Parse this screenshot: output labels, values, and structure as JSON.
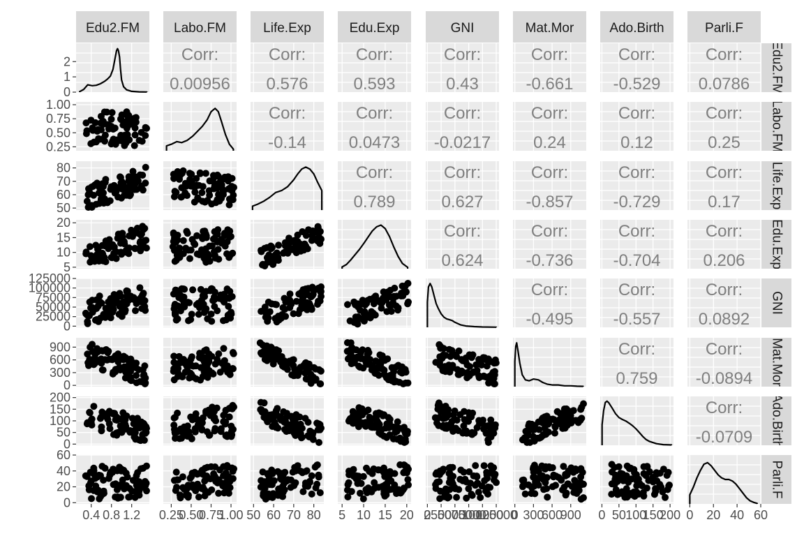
{
  "chart_data": {
    "type": "scatter-matrix",
    "variables": [
      "Edu2.FM",
      "Labo.FM",
      "Life.Exp",
      "Edu.Exp",
      "GNI",
      "Mat.Mor",
      "Ado.Birth",
      "Parli.F"
    ],
    "corr_label": "Corr:",
    "correlations": [
      {
        "row": "Edu2.FM",
        "col": "Labo.FM",
        "value": "0.00956"
      },
      {
        "row": "Edu2.FM",
        "col": "Life.Exp",
        "value": "0.576"
      },
      {
        "row": "Edu2.FM",
        "col": "Edu.Exp",
        "value": "0.593"
      },
      {
        "row": "Edu2.FM",
        "col": "GNI",
        "value": "0.43"
      },
      {
        "row": "Edu2.FM",
        "col": "Mat.Mor",
        "value": "-0.661"
      },
      {
        "row": "Edu2.FM",
        "col": "Ado.Birth",
        "value": "-0.529"
      },
      {
        "row": "Edu2.FM",
        "col": "Parli.F",
        "value": "0.0786"
      },
      {
        "row": "Labo.FM",
        "col": "Life.Exp",
        "value": "-0.14"
      },
      {
        "row": "Labo.FM",
        "col": "Edu.Exp",
        "value": "0.0473"
      },
      {
        "row": "Labo.FM",
        "col": "GNI",
        "value": "-0.0217"
      },
      {
        "row": "Labo.FM",
        "col": "Mat.Mor",
        "value": "0.24"
      },
      {
        "row": "Labo.FM",
        "col": "Ado.Birth",
        "value": "0.12"
      },
      {
        "row": "Labo.FM",
        "col": "Parli.F",
        "value": "0.25"
      },
      {
        "row": "Life.Exp",
        "col": "Edu.Exp",
        "value": "0.789"
      },
      {
        "row": "Life.Exp",
        "col": "GNI",
        "value": "0.627"
      },
      {
        "row": "Life.Exp",
        "col": "Mat.Mor",
        "value": "-0.857"
      },
      {
        "row": "Life.Exp",
        "col": "Ado.Birth",
        "value": "-0.729"
      },
      {
        "row": "Life.Exp",
        "col": "Parli.F",
        "value": "0.17"
      },
      {
        "row": "Edu.Exp",
        "col": "GNI",
        "value": "0.624"
      },
      {
        "row": "Edu.Exp",
        "col": "Mat.Mor",
        "value": "-0.736"
      },
      {
        "row": "Edu.Exp",
        "col": "Ado.Birth",
        "value": "-0.704"
      },
      {
        "row": "Edu.Exp",
        "col": "Parli.F",
        "value": "0.206"
      },
      {
        "row": "GNI",
        "col": "Mat.Mor",
        "value": "-0.495"
      },
      {
        "row": "GNI",
        "col": "Ado.Birth",
        "value": "-0.557"
      },
      {
        "row": "GNI",
        "col": "Parli.F",
        "value": "0.0892"
      },
      {
        "row": "Mat.Mor",
        "col": "Ado.Birth",
        "value": "0.759"
      },
      {
        "row": "Mat.Mor",
        "col": "Parli.F",
        "value": "-0.0894"
      },
      {
        "row": "Ado.Birth",
        "col": "Parli.F",
        "value": "-0.0709"
      }
    ],
    "diagonal": [
      {
        "var": "Edu2.FM",
        "type": "density",
        "xlim": [
          0.1,
          1.55
        ],
        "ylim": [
          0,
          3.2
        ],
        "y_ticks": [
          "0",
          "1",
          "2"
        ],
        "y_tick_values": [
          0,
          1,
          2
        ],
        "x_ticks": [
          "0.4",
          "0.8",
          "1.2"
        ],
        "x_tick_values": [
          0.4,
          0.8,
          1.2
        ],
        "curve_x": [
          0.17,
          0.25,
          0.33,
          0.42,
          0.5,
          0.58,
          0.66,
          0.72,
          0.78,
          0.83,
          0.87,
          0.9,
          0.92,
          0.94,
          0.96,
          0.98,
          1.0,
          1.04,
          1.1,
          1.2,
          1.35,
          1.5
        ],
        "curve_y": [
          0.03,
          0.18,
          0.48,
          0.42,
          0.45,
          0.55,
          0.7,
          0.85,
          1.05,
          1.5,
          2.2,
          2.7,
          2.85,
          2.7,
          2.3,
          1.5,
          0.8,
          0.35,
          0.15,
          0.05,
          0.02,
          0.01
        ]
      },
      {
        "var": "Labo.FM",
        "type": "density",
        "xlim": [
          0.15,
          1.07
        ],
        "ylim": [
          0,
          1.5
        ],
        "x_ticks": [
          "0.25",
          "0.50",
          "0.75",
          "1.00"
        ],
        "x_tick_values": [
          0.25,
          0.5,
          0.75,
          1.0
        ],
        "curve_x": [
          0.19,
          0.25,
          0.32,
          0.38,
          0.45,
          0.52,
          0.58,
          0.64,
          0.7,
          0.75,
          0.8,
          0.84,
          0.88,
          0.93,
          0.98,
          1.03
        ],
        "curve_y": [
          0.15,
          0.2,
          0.28,
          0.25,
          0.32,
          0.45,
          0.6,
          0.75,
          0.95,
          1.2,
          1.3,
          1.2,
          0.9,
          0.5,
          0.2,
          0.05
        ]
      },
      {
        "var": "Life.Exp",
        "type": "density",
        "xlim": [
          48.5,
          85
        ],
        "ylim": [
          0,
          0.05
        ],
        "x_ticks": [
          "50",
          "60",
          "70",
          "80"
        ],
        "x_tick_values": [
          50,
          60,
          70,
          80
        ],
        "curve_x": [
          49.5,
          52,
          55,
          58,
          61,
          64,
          67,
          70,
          72,
          74,
          76,
          78,
          80,
          82,
          84
        ],
        "curve_y": [
          0.004,
          0.006,
          0.009,
          0.013,
          0.018,
          0.02,
          0.024,
          0.031,
          0.037,
          0.042,
          0.044,
          0.042,
          0.037,
          0.028,
          0.02
        ]
      },
      {
        "var": "Edu.Exp",
        "type": "density",
        "xlim": [
          4,
          21
        ],
        "ylim": [
          0,
          0.14
        ],
        "x_ticks": [
          "5",
          "10",
          "15",
          "20"
        ],
        "x_tick_values": [
          5,
          10,
          15,
          20
        ],
        "curve_x": [
          5,
          6,
          7,
          8,
          9,
          10,
          11,
          12,
          13,
          14,
          15,
          16,
          17,
          18,
          19,
          20.2
        ],
        "curve_y": [
          0.005,
          0.012,
          0.025,
          0.04,
          0.055,
          0.072,
          0.09,
          0.108,
          0.12,
          0.125,
          0.115,
          0.092,
          0.062,
          0.035,
          0.015,
          0.004
        ]
      },
      {
        "var": "GNI",
        "type": "density",
        "xlim": [
          -3000,
          130000
        ],
        "ylim": [
          0,
          2.9e-05
        ],
        "x_ticks": [
          "0",
          "25000",
          "50000",
          "75000",
          "100000",
          "125000"
        ],
        "x_tick_values": [
          0,
          25000,
          50000,
          75000,
          100000,
          125000
        ],
        "curve_x": [
          0,
          2000,
          5000,
          8000,
          12000,
          16000,
          20000,
          25000,
          30000,
          35000,
          40000,
          45000,
          50000,
          60000,
          70000,
          85000,
          100000,
          125000
        ],
        "curve_y": [
          1.5e-05,
          2.4e-05,
          2.6e-05,
          2.4e-05,
          1.9e-05,
          1.4e-05,
          1.1e-05,
          8e-06,
          6e-06,
          5e-06,
          4.5e-06,
          4e-06,
          3e-06,
          1.5e-06,
          8e-07,
          4e-07,
          2e-07,
          1e-07
        ]
      },
      {
        "var": "Mat.Mor",
        "type": "density",
        "xlim": [
          -30,
          1150
        ],
        "ylim": [
          0,
          0.0058
        ],
        "x_ticks": [
          "0",
          "300",
          "600",
          "900"
        ],
        "x_tick_values": [
          0,
          300,
          600,
          900
        ],
        "curve_x": [
          0,
          15,
          30,
          50,
          80,
          120,
          170,
          230,
          300,
          380,
          450,
          520,
          600,
          700,
          800,
          900,
          1000,
          1100
        ],
        "curve_y": [
          0.003,
          0.0048,
          0.0052,
          0.0043,
          0.0028,
          0.0014,
          0.0008,
          0.0007,
          0.0009,
          0.0008,
          0.0005,
          0.0003,
          0.0002,
          0.0002,
          0.0001,
          0.0001,
          5e-05,
          3e-05
        ]
      },
      {
        "var": "Ado.Birth",
        "type": "density",
        "xlim": [
          -5,
          210
        ],
        "ylim": [
          0,
          0.0155
        ],
        "x_ticks": [
          "0",
          "50",
          "100",
          "150",
          "200"
        ],
        "x_tick_values": [
          0,
          50,
          100,
          150,
          200
        ],
        "curve_x": [
          0.6,
          5,
          10,
          15,
          20,
          30,
          40,
          50,
          60,
          70,
          80,
          90,
          100,
          110,
          120,
          130,
          140,
          160,
          180,
          204
        ],
        "curve_y": [
          0.0065,
          0.011,
          0.0136,
          0.014,
          0.0135,
          0.0118,
          0.01,
          0.0088,
          0.0082,
          0.0077,
          0.007,
          0.0062,
          0.0052,
          0.004,
          0.0028,
          0.0018,
          0.0012,
          0.0005,
          0.0002,
          0.0001
        ]
      },
      {
        "var": "Parli.F",
        "type": "density",
        "xlim": [
          -2,
          60
        ],
        "ylim": [
          0,
          0.032
        ],
        "x_ticks": [
          "0",
          "20",
          "40",
          "60"
        ],
        "x_tick_values": [
          0,
          20,
          40,
          60
        ],
        "curve_x": [
          0,
          3,
          6,
          9,
          12,
          15,
          18,
          21,
          24,
          27,
          30,
          33,
          36,
          39,
          42,
          45,
          48,
          51,
          54,
          57
        ],
        "curve_y": [
          0.006,
          0.011,
          0.017,
          0.022,
          0.026,
          0.027,
          0.025,
          0.022,
          0.019,
          0.017,
          0.016,
          0.016,
          0.015,
          0.013,
          0.01,
          0.007,
          0.004,
          0.002,
          0.001,
          0.0003
        ]
      }
    ],
    "y_axis_ticks": {
      "Labo.FM": {
        "labels": [
          "0.25",
          "0.50",
          "0.75",
          "1.00"
        ],
        "values": [
          0.25,
          0.5,
          0.75,
          1.0
        ],
        "ylim": [
          0.18,
          1.05
        ]
      },
      "Life.Exp": {
        "labels": [
          "50",
          "60",
          "70",
          "80"
        ],
        "values": [
          50,
          60,
          70,
          80
        ],
        "ylim": [
          48.5,
          85
        ]
      },
      "Edu.Exp": {
        "labels": [
          "5",
          "10",
          "15",
          "20"
        ],
        "values": [
          5,
          10,
          15,
          20
        ],
        "ylim": [
          4.5,
          21
        ]
      },
      "GNI": {
        "labels": [
          "0",
          "25000",
          "50000",
          "75000",
          "100000",
          "125000"
        ],
        "values": [
          0,
          25000,
          50000,
          75000,
          100000,
          125000
        ],
        "ylim": [
          -3000,
          125000
        ]
      },
      "Mat.Mor": {
        "labels": [
          "0",
          "300",
          "600",
          "900"
        ],
        "values": [
          0,
          300,
          600,
          900
        ],
        "ylim": [
          -30,
          1120
        ]
      },
      "Ado.Birth": {
        "labels": [
          "0",
          "50",
          "100",
          "150",
          "200"
        ],
        "values": [
          0,
          50,
          100,
          150,
          200
        ],
        "ylim": [
          -5,
          205
        ]
      },
      "Parli.F": {
        "labels": [
          "0",
          "20",
          "40",
          "60"
        ],
        "values": [
          0,
          20,
          40,
          60
        ],
        "ylim": [
          -1.5,
          60
        ]
      }
    },
    "grid": true,
    "point_color": "#000000",
    "panel_background": "#ebebeb",
    "strip_background": "#d9d9d9",
    "corr_text_color": "#7f7f7f",
    "axis_text_color": "#4d4d4d"
  }
}
